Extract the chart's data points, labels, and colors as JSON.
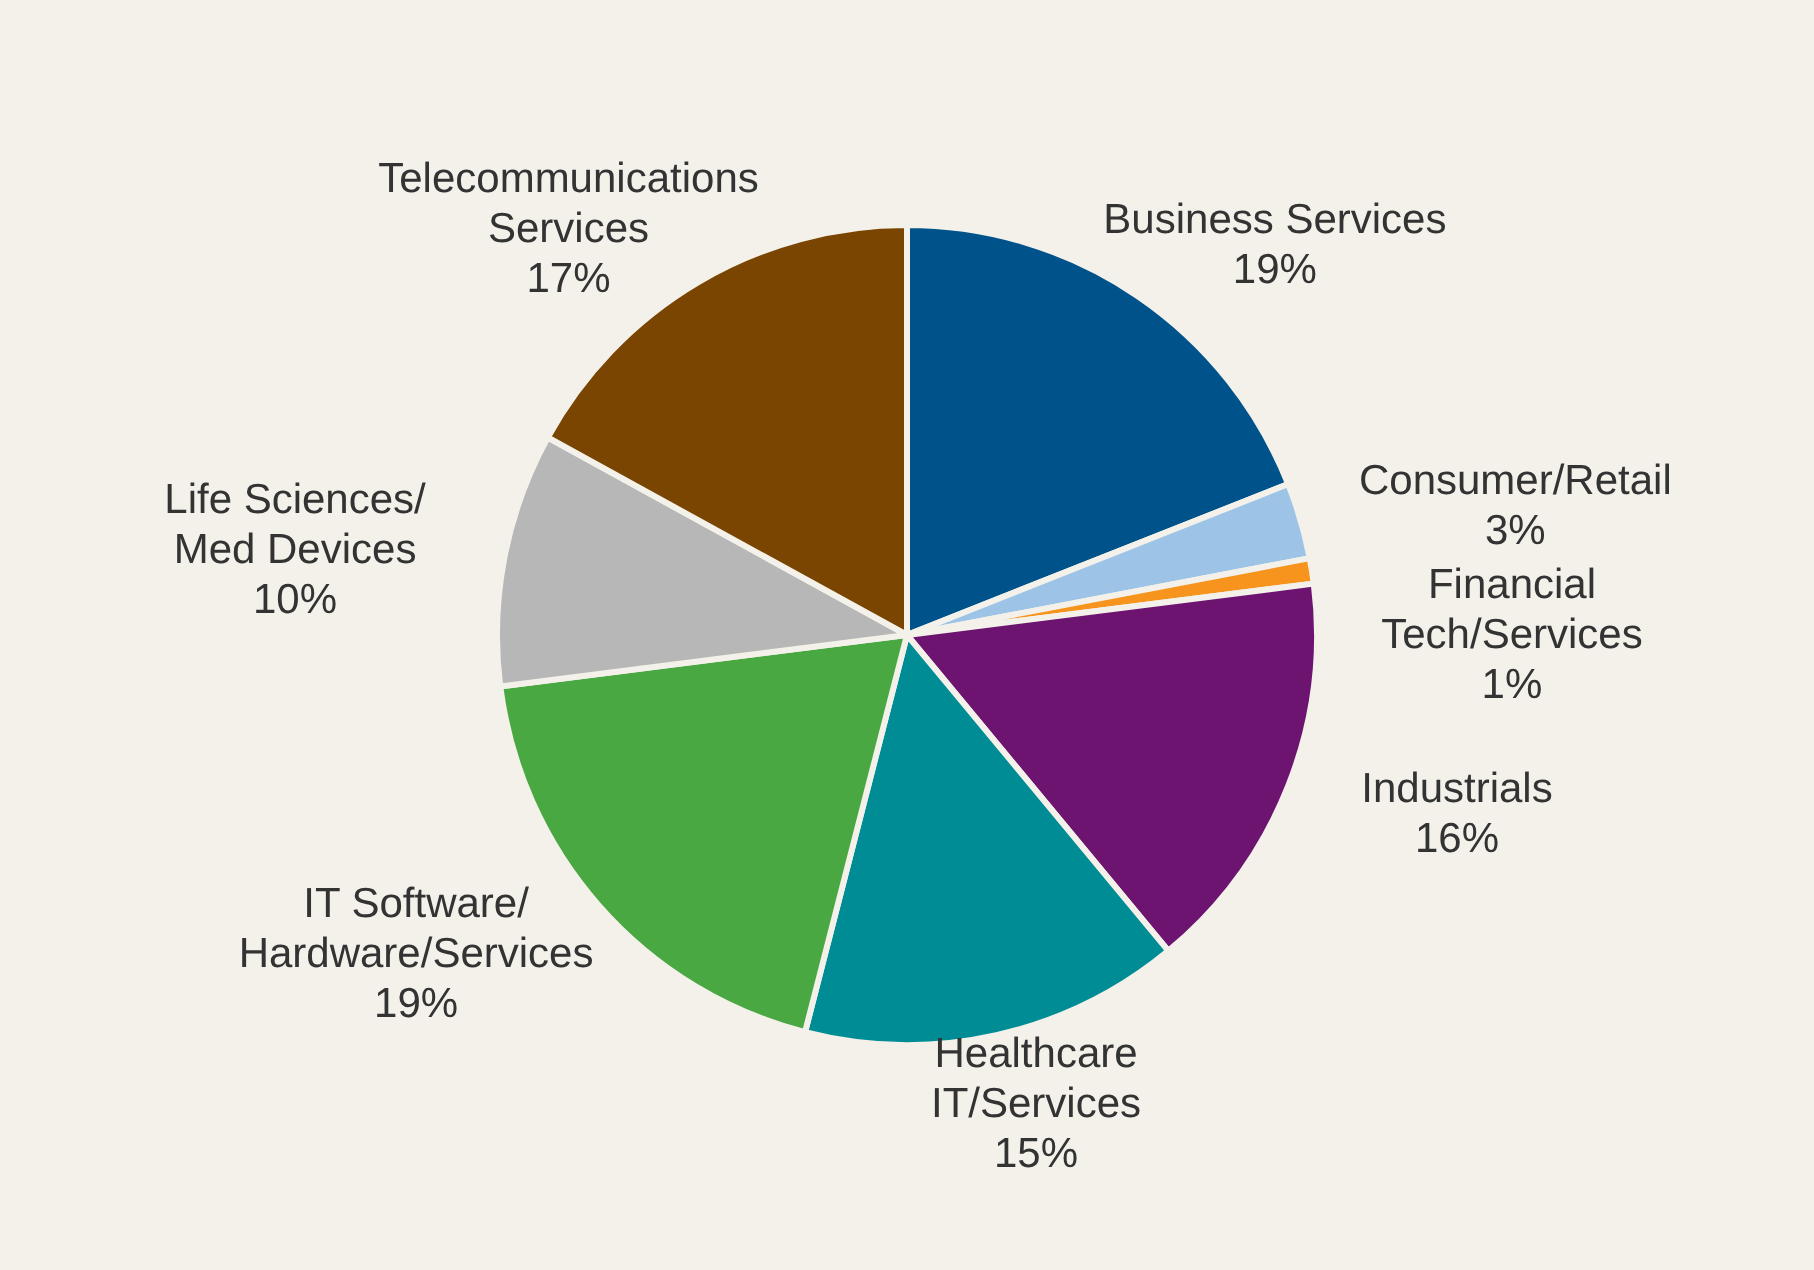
{
  "chart_data": {
    "type": "pie",
    "categories": [
      "Business Services",
      "Consumer/Retail",
      "Financial\nTech/Services",
      "Industrials",
      "Healthcare\nIT/Services",
      "IT Software/\nHardware/Services",
      "Life Sciences/\nMed Devices",
      "Telecommunications\nServices"
    ],
    "values": [
      19,
      3,
      1,
      16,
      15,
      19,
      10,
      17
    ],
    "value_labels": [
      "19%",
      "3%",
      "1%",
      "16%",
      "15%",
      "19%",
      "10%",
      "17%"
    ],
    "colors": [
      "#00538a",
      "#9dc3e6",
      "#f7941d",
      "#6d1471",
      "#008c95",
      "#4aa842",
      "#b7b7b7",
      "#7a4500"
    ]
  }
}
